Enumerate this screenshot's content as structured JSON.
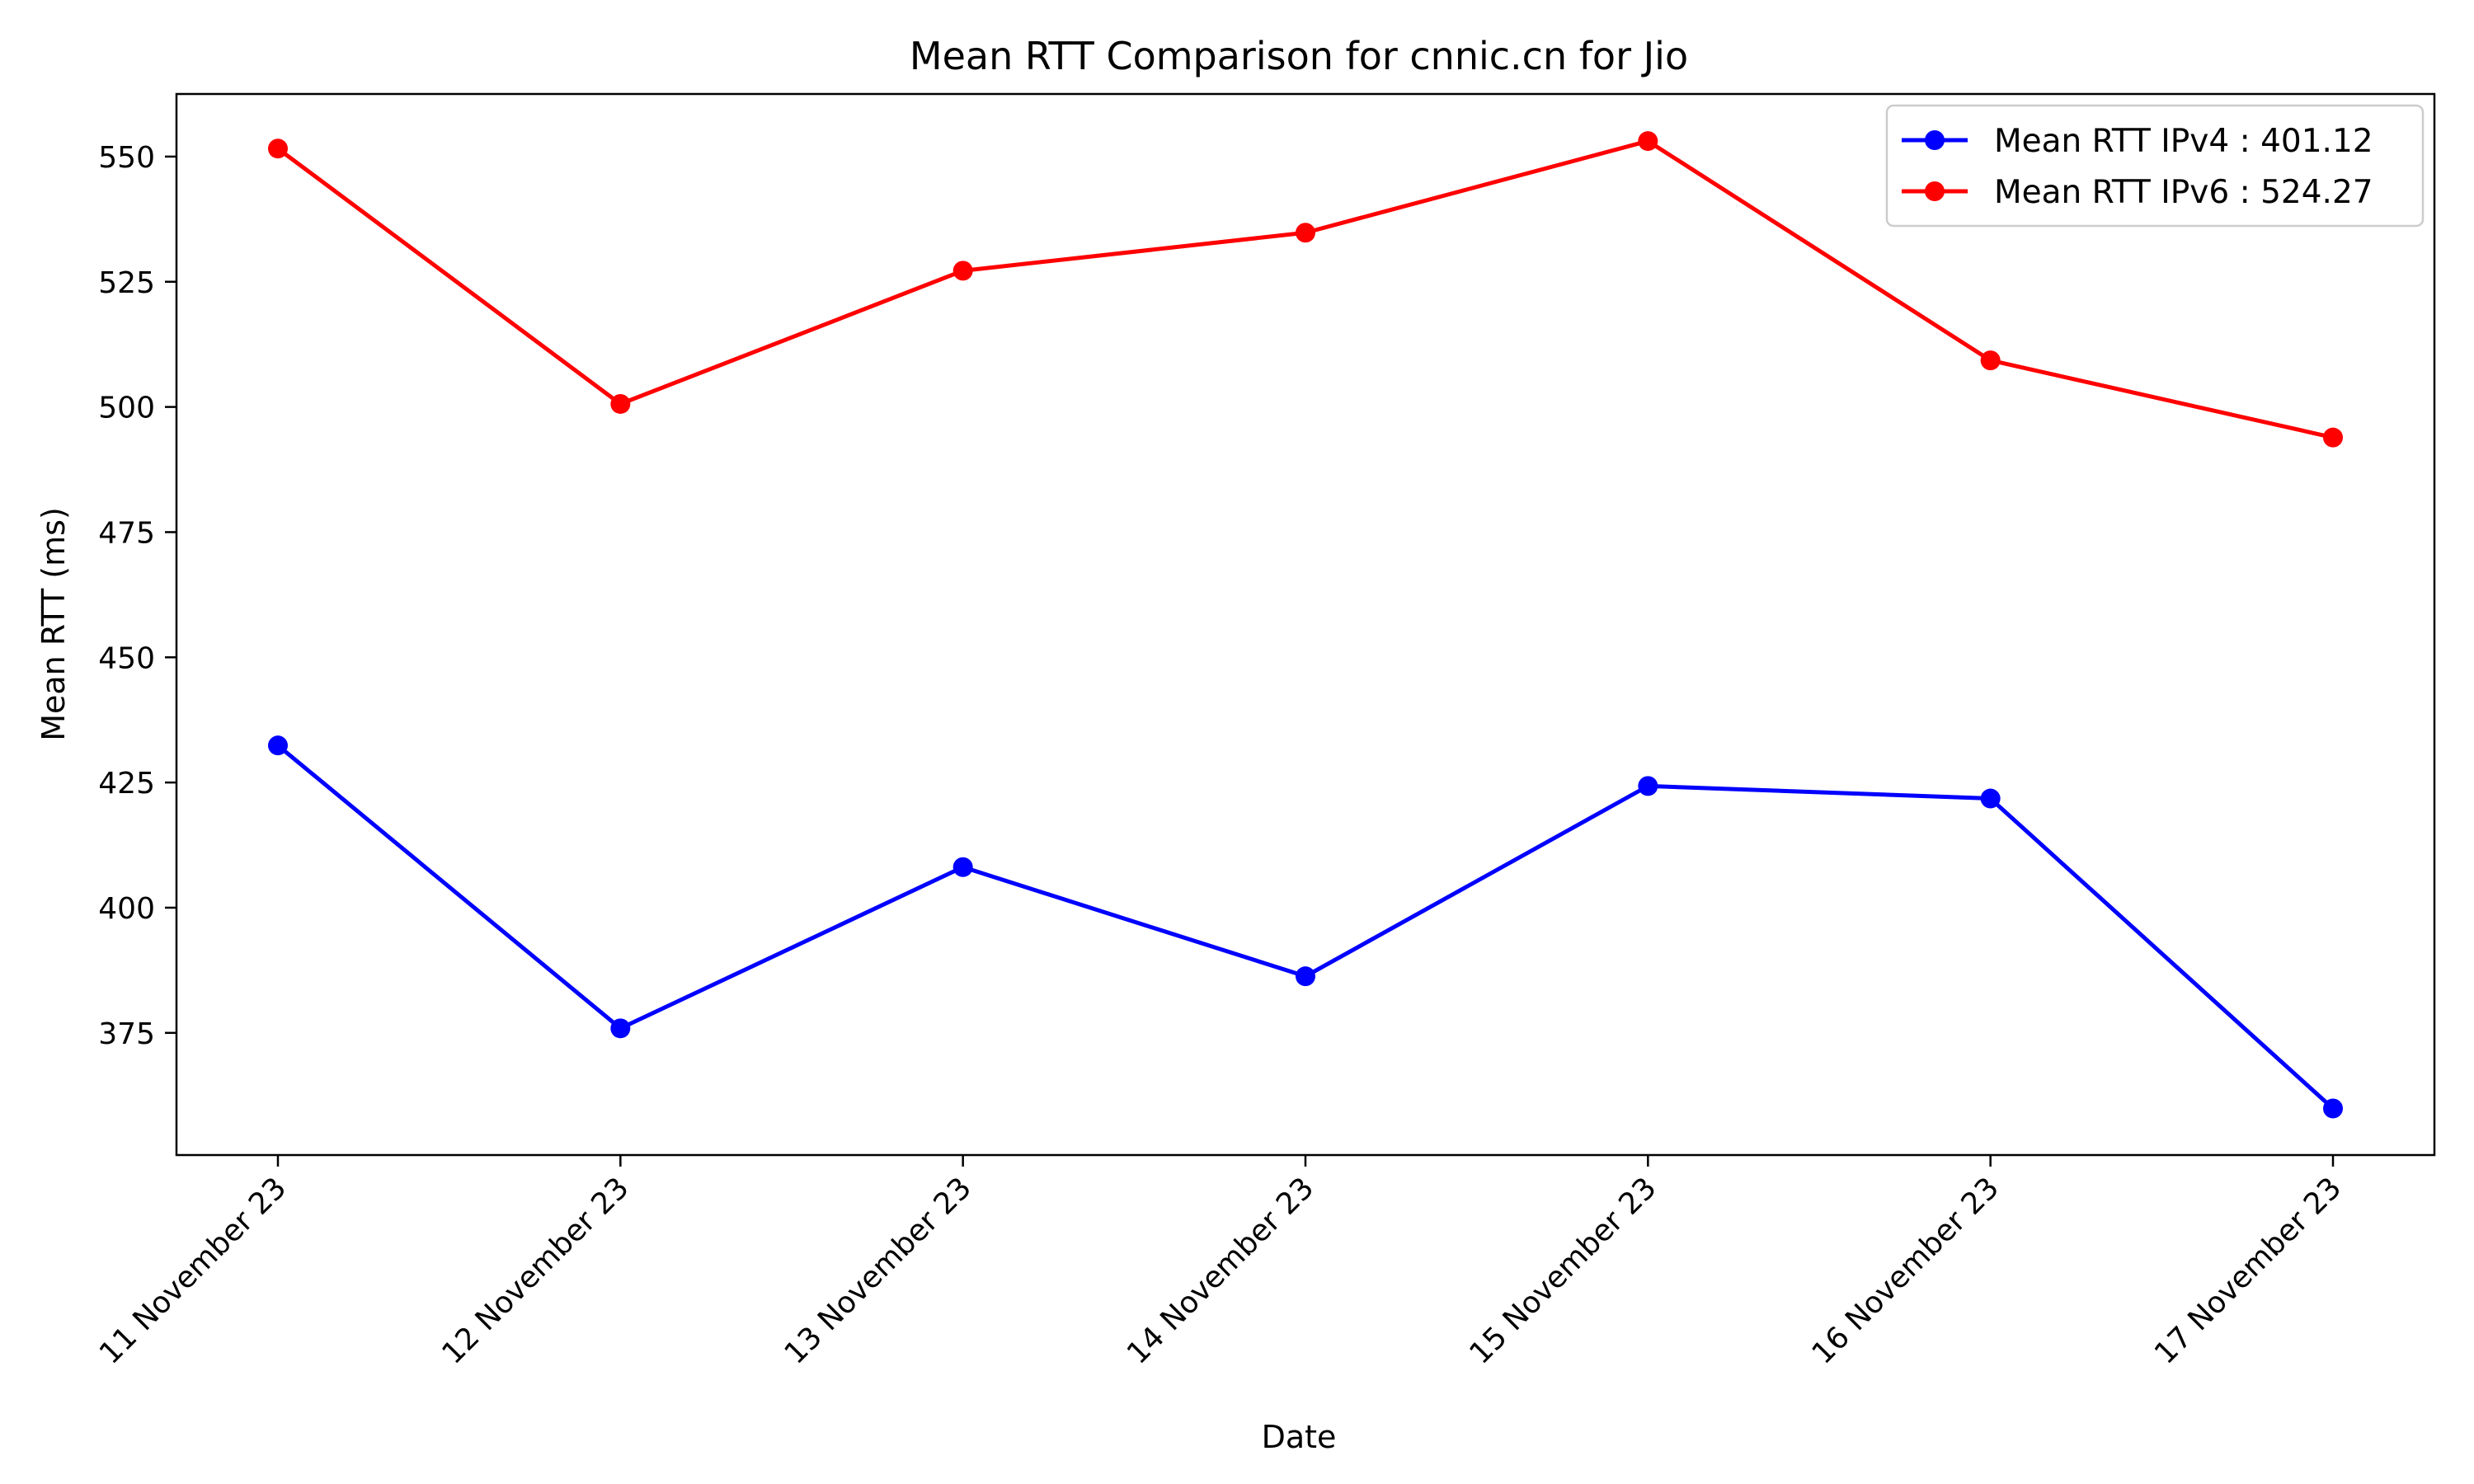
{
  "chart_data": {
    "type": "line",
    "title": "Mean RTT Comparison for cnnic.cn for Jio",
    "xlabel": "Date",
    "ylabel": "Mean RTT (ms)",
    "categories": [
      "11 November 23",
      "12 November 23",
      "13 November 23",
      "14 November 23",
      "15 November 23",
      "16 November 23",
      "17 November 23"
    ],
    "yticks": [
      375,
      400,
      425,
      450,
      475,
      500,
      525,
      550
    ],
    "ylim": [
      350.6,
      562.5
    ],
    "grid": false,
    "legend_position": "top-right",
    "series": [
      {
        "name": "Mean RTT IPv4 : 401.12",
        "color": "#0000ff",
        "values": [
          432.4,
          375.9,
          408.1,
          386.3,
          424.3,
          421.8,
          359.9
        ]
      },
      {
        "name": "Mean RTT IPv6 : 524.27",
        "color": "#ff0000",
        "values": [
          551.6,
          500.6,
          527.2,
          534.8,
          553.1,
          509.3,
          493.9
        ]
      }
    ]
  }
}
